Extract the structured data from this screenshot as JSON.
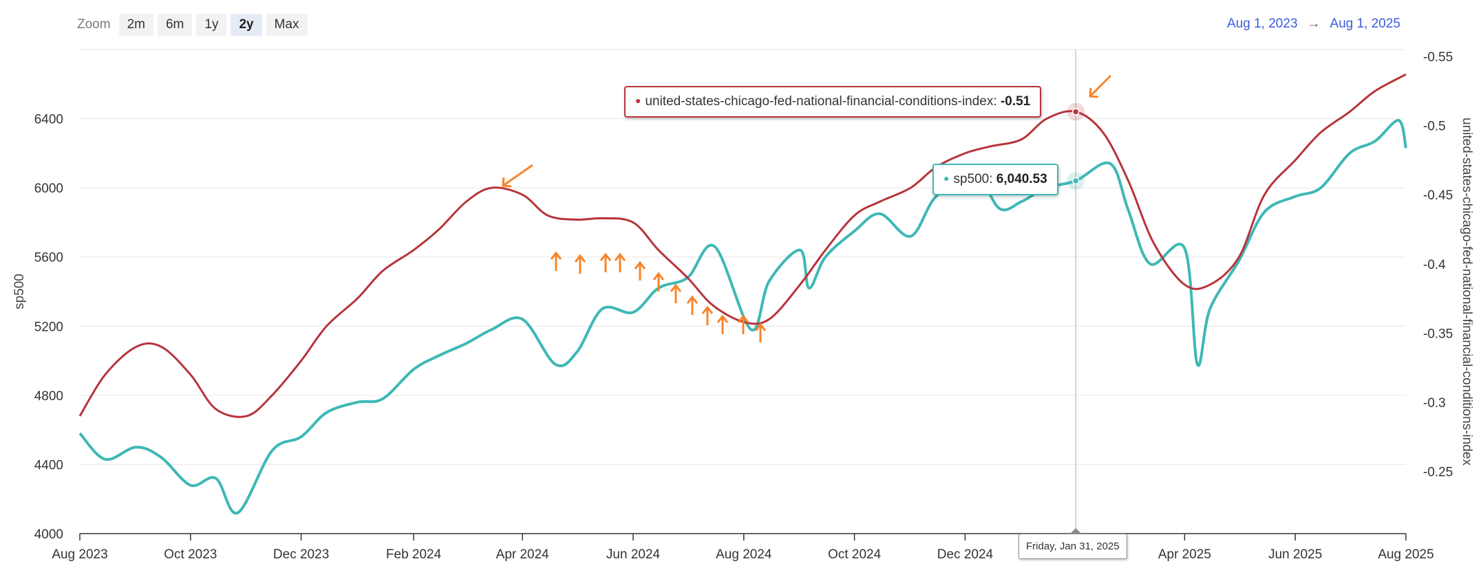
{
  "zoom": {
    "label": "Zoom",
    "buttons": [
      "2m",
      "6m",
      "1y",
      "2y",
      "Max"
    ],
    "active": "2y"
  },
  "range": {
    "from": "Aug 1, 2023",
    "arrow": "→",
    "to": "Aug 1, 2025"
  },
  "tooltips": {
    "fci_label": "united-states-chicago-fed-national-financial-conditions-index:",
    "fci_value": "-0.51",
    "sp_label": "sp500:",
    "sp_value": "6,040.53",
    "date": "Friday, Jan 31, 2025"
  },
  "colors": {
    "sp500": "#3eb8b5",
    "fci": "#b7333b",
    "arrows": "#f7842a",
    "range_text": "#3a5be0"
  },
  "chart_data": {
    "type": "line",
    "title": "",
    "xlabel": "",
    "xlim": [
      "2023-08-01",
      "2025-08-01"
    ],
    "x_tick_labels": [
      "Aug 2023",
      "Oct 2023",
      "Dec 2023",
      "Feb 2024",
      "Apr 2024",
      "Jun 2024",
      "Aug 2024",
      "Oct 2024",
      "Dec 2024",
      "Feb 2025",
      "Apr 2025",
      "Jun 2025",
      "Aug 2025"
    ],
    "y_left": {
      "label": "sp500",
      "ticks": [
        4000,
        4400,
        4800,
        5200,
        5600,
        6000,
        6400
      ],
      "range": [
        4000,
        6800
      ]
    },
    "y_right": {
      "label": "united-states-chicago-fed-national-financial-conditions-index",
      "ticks": [
        -0.25,
        -0.3,
        -0.35,
        -0.4,
        -0.45,
        -0.5,
        -0.55
      ],
      "range": [
        -0.205,
        -0.555
      ]
    },
    "grid": true,
    "legend": "none",
    "series": [
      {
        "name": "sp500",
        "axis": "left",
        "x": [
          "2023-08-01",
          "2023-08-15",
          "2023-09-01",
          "2023-09-15",
          "2023-10-01",
          "2023-10-15",
          "2023-10-27",
          "2023-11-15",
          "2023-12-01",
          "2023-12-15",
          "2024-01-01",
          "2024-01-15",
          "2024-02-01",
          "2024-02-15",
          "2024-03-01",
          "2024-03-15",
          "2024-04-01",
          "2024-04-19",
          "2024-05-01",
          "2024-05-15",
          "2024-06-01",
          "2024-06-15",
          "2024-07-01",
          "2024-07-16",
          "2024-08-05",
          "2024-08-15",
          "2024-09-01",
          "2024-09-06",
          "2024-09-15",
          "2024-10-01",
          "2024-10-15",
          "2024-11-01",
          "2024-11-15",
          "2024-12-06",
          "2024-12-20",
          "2025-01-01",
          "2025-01-15",
          "2025-01-31",
          "2025-02-19",
          "2025-03-01",
          "2025-03-13",
          "2025-04-01",
          "2025-04-08",
          "2025-04-15",
          "2025-05-01",
          "2025-05-15",
          "2025-06-01",
          "2025-06-15",
          "2025-07-01",
          "2025-07-15",
          "2025-07-28",
          "2025-08-01"
        ],
        "y": [
          4580,
          4430,
          4500,
          4440,
          4280,
          4320,
          4120,
          4480,
          4560,
          4700,
          4760,
          4780,
          4950,
          5030,
          5100,
          5180,
          5240,
          4980,
          5050,
          5300,
          5280,
          5420,
          5480,
          5660,
          5180,
          5460,
          5640,
          5420,
          5600,
          5750,
          5850,
          5720,
          5950,
          6080,
          5880,
          5920,
          6000,
          6040.53,
          6140,
          5870,
          5560,
          5650,
          4980,
          5300,
          5580,
          5860,
          5950,
          6000,
          6200,
          6270,
          6390,
          6230
        ]
      },
      {
        "name": "united-states-chicago-fed-national-financial-conditions-index",
        "axis": "right",
        "x": [
          "2023-08-01",
          "2023-08-15",
          "2023-09-01",
          "2023-09-15",
          "2023-10-01",
          "2023-10-15",
          "2023-11-01",
          "2023-11-15",
          "2023-12-01",
          "2023-12-15",
          "2024-01-01",
          "2024-01-15",
          "2024-02-01",
          "2024-02-15",
          "2024-03-01",
          "2024-03-15",
          "2024-04-01",
          "2024-04-15",
          "2024-05-01",
          "2024-05-15",
          "2024-06-01",
          "2024-06-15",
          "2024-07-01",
          "2024-07-15",
          "2024-08-01",
          "2024-08-15",
          "2024-09-01",
          "2024-09-15",
          "2024-10-01",
          "2024-10-15",
          "2024-11-01",
          "2024-11-15",
          "2024-12-01",
          "2024-12-15",
          "2025-01-01",
          "2025-01-15",
          "2025-01-31",
          "2025-02-15",
          "2025-03-01",
          "2025-03-15",
          "2025-04-01",
          "2025-04-15",
          "2025-05-01",
          "2025-05-15",
          "2025-06-01",
          "2025-06-15",
          "2025-07-01",
          "2025-07-15",
          "2025-08-01"
        ],
        "y": [
          -0.29,
          -0.32,
          -0.34,
          -0.34,
          -0.32,
          -0.295,
          -0.29,
          -0.305,
          -0.33,
          -0.355,
          -0.375,
          -0.395,
          -0.41,
          -0.425,
          -0.445,
          -0.455,
          -0.45,
          -0.435,
          -0.432,
          -0.433,
          -0.43,
          -0.41,
          -0.39,
          -0.37,
          -0.358,
          -0.36,
          -0.385,
          -0.41,
          -0.435,
          -0.445,
          -0.455,
          -0.47,
          -0.48,
          -0.485,
          -0.49,
          -0.505,
          -0.51,
          -0.495,
          -0.46,
          -0.415,
          -0.385,
          -0.385,
          -0.405,
          -0.45,
          -0.475,
          -0.495,
          -0.51,
          -0.525,
          -0.537
        ]
      }
    ]
  },
  "annotations": {
    "arrow_dates": [
      [
        "2024-04-17",
        "2024-05-04",
        "2024-05-21",
        "2024-06-07",
        "2024-06-24",
        "2024-07-11",
        "2024-07-28",
        "2024-08-14"
      ]
    ],
    "note": ""
  }
}
